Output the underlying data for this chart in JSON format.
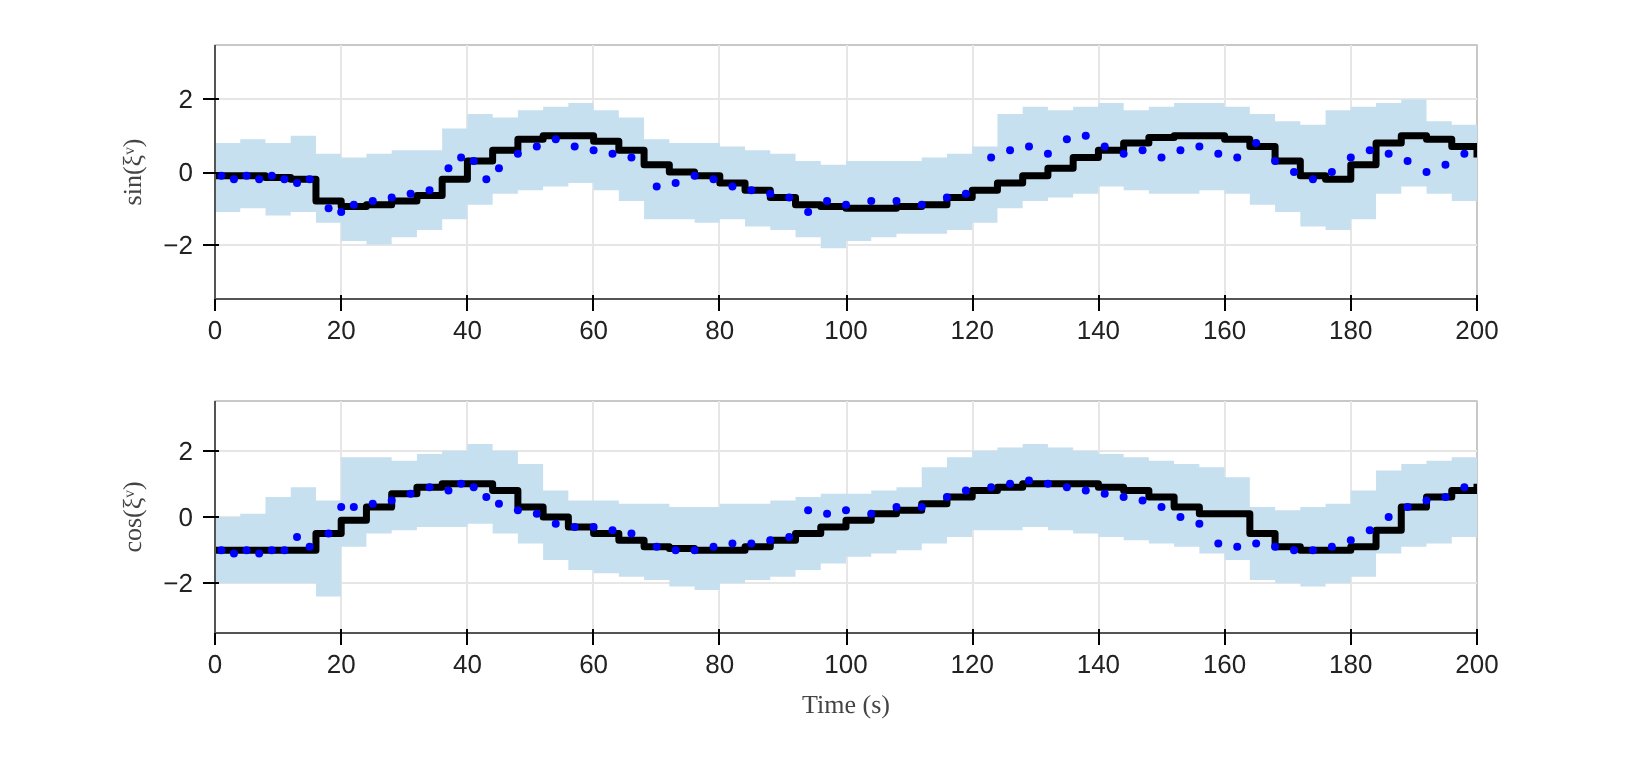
{
  "chart_data": [
    {
      "type": "step",
      "ylabel": "sin(ξᵛ)",
      "xlim": [
        0,
        200
      ],
      "ylim": [
        -3.5,
        3.5
      ],
      "xticks": [
        0,
        20,
        40,
        60,
        80,
        100,
        120,
        140,
        160,
        180,
        200
      ],
      "yticks": [
        -2,
        0,
        2
      ],
      "grid": true,
      "x": [
        0,
        4,
        8,
        12,
        16,
        20,
        24,
        28,
        32,
        36,
        40,
        44,
        48,
        52,
        56,
        60,
        64,
        68,
        72,
        76,
        80,
        84,
        88,
        92,
        96,
        100,
        104,
        108,
        112,
        116,
        120,
        124,
        128,
        132,
        136,
        140,
        144,
        148,
        152,
        156,
        160,
        164,
        168,
        172,
        176,
        180,
        184,
        188,
        192,
        196,
        200
      ],
      "series": [
        {
          "color": "#000000",
          "values": [
            -0.1,
            -0.1,
            -0.15,
            -0.2,
            -0.8,
            -0.95,
            -0.9,
            -0.8,
            -0.65,
            -0.2,
            0.3,
            0.6,
            0.9,
            1.0,
            1.0,
            0.85,
            0.6,
            0.2,
            0.0,
            -0.1,
            -0.3,
            -0.5,
            -0.7,
            -0.9,
            -0.95,
            -1.0,
            -1.0,
            -0.95,
            -0.9,
            -0.7,
            -0.5,
            -0.3,
            -0.1,
            0.1,
            0.4,
            0.6,
            0.8,
            0.95,
            1.0,
            1.0,
            0.9,
            0.7,
            0.3,
            -0.1,
            -0.2,
            0.2,
            0.8,
            1.0,
            0.9,
            0.7,
            0.4
          ],
          "upper": [
            0.8,
            0.9,
            0.8,
            1.0,
            0.5,
            0.4,
            0.5,
            0.6,
            0.6,
            1.2,
            1.6,
            1.5,
            1.7,
            1.8,
            1.9,
            1.7,
            1.5,
            0.9,
            0.8,
            0.8,
            0.7,
            0.6,
            0.5,
            0.3,
            0.2,
            0.3,
            0.3,
            0.3,
            0.4,
            0.5,
            0.7,
            1.6,
            1.8,
            1.7,
            1.8,
            1.9,
            1.7,
            1.8,
            1.9,
            1.9,
            1.8,
            1.6,
            1.4,
            1.3,
            1.7,
            1.8,
            1.9,
            2.0,
            1.4,
            1.3,
            1.6
          ],
          "lower": [
            -1.1,
            -1.0,
            -1.2,
            -1.1,
            -1.4,
            -1.9,
            -2.0,
            -1.8,
            -1.6,
            -1.3,
            -0.9,
            -0.6,
            -0.5,
            -0.4,
            -0.3,
            -0.5,
            -0.8,
            -1.3,
            -1.3,
            -1.4,
            -1.3,
            -1.5,
            -1.6,
            -1.8,
            -2.1,
            -1.9,
            -1.8,
            -1.7,
            -1.7,
            -1.6,
            -1.4,
            -1.0,
            -0.8,
            -0.7,
            -0.6,
            -0.4,
            -0.5,
            -0.6,
            -0.6,
            -0.5,
            -0.6,
            -0.9,
            -1.1,
            -1.5,
            -1.6,
            -1.3,
            -0.6,
            -0.4,
            -0.6,
            -0.8,
            -0.7
          ]
        },
        {
          "type": "scatter",
          "color": "#0000ff",
          "x": [
            1,
            3,
            5,
            7,
            9,
            11,
            13,
            15,
            18,
            20,
            22,
            25,
            28,
            31,
            34,
            37,
            39,
            41,
            43,
            45,
            48,
            51,
            54,
            57,
            60,
            63,
            66,
            70,
            73,
            76,
            79,
            82,
            85,
            88,
            91,
            94,
            97,
            100,
            104,
            108,
            112,
            116,
            119,
            123,
            126,
            129,
            132,
            135,
            138,
            141,
            144,
            147,
            150,
            153,
            156,
            159,
            162,
            165,
            168,
            171,
            174,
            177,
            180,
            183,
            186,
            189,
            192,
            195,
            198
          ],
          "values": [
            -0.1,
            -0.2,
            -0.1,
            -0.2,
            -0.1,
            -0.2,
            -0.3,
            -0.2,
            -1.0,
            -1.1,
            -0.9,
            -0.8,
            -0.7,
            -0.6,
            -0.5,
            0.1,
            0.4,
            0.3,
            -0.2,
            0.1,
            0.5,
            0.7,
            0.9,
            0.7,
            0.6,
            0.5,
            0.4,
            -0.4,
            -0.3,
            -0.1,
            -0.2,
            -0.4,
            -0.5,
            -0.6,
            -0.7,
            -1.1,
            -0.8,
            -0.9,
            -0.8,
            -0.8,
            -0.9,
            -0.7,
            -0.6,
            0.4,
            0.6,
            0.7,
            0.5,
            0.9,
            1.0,
            0.7,
            0.5,
            0.6,
            0.4,
            0.6,
            0.7,
            0.5,
            0.4,
            0.8,
            0.3,
            0.0,
            -0.2,
            0.0,
            0.4,
            0.6,
            0.5,
            0.3,
            0.0,
            0.2,
            0.5
          ]
        }
      ]
    },
    {
      "type": "step",
      "ylabel": "cos(ξᵛ)",
      "xlabel": "Time (s)",
      "xlim": [
        0,
        200
      ],
      "ylim": [
        -3.5,
        3.5
      ],
      "xticks": [
        0,
        20,
        40,
        60,
        80,
        100,
        120,
        140,
        160,
        180,
        200
      ],
      "yticks": [
        -2,
        0,
        2
      ],
      "grid": true,
      "x": [
        0,
        4,
        8,
        12,
        16,
        20,
        24,
        28,
        32,
        36,
        40,
        44,
        48,
        52,
        56,
        60,
        64,
        68,
        72,
        76,
        80,
        84,
        88,
        92,
        96,
        100,
        104,
        108,
        112,
        116,
        120,
        124,
        128,
        132,
        136,
        140,
        144,
        148,
        152,
        156,
        160,
        164,
        168,
        172,
        176,
        180,
        184,
        188,
        192,
        196,
        200
      ],
      "series": [
        {
          "color": "#000000",
          "values": [
            -1.0,
            -1.0,
            -1.0,
            -1.0,
            -0.5,
            -0.1,
            0.3,
            0.7,
            0.9,
            1.0,
            1.0,
            0.8,
            0.3,
            0.0,
            -0.3,
            -0.5,
            -0.7,
            -0.9,
            -0.95,
            -1.0,
            -1.0,
            -0.9,
            -0.7,
            -0.5,
            -0.3,
            -0.1,
            0.1,
            0.2,
            0.4,
            0.6,
            0.8,
            0.9,
            1.0,
            1.0,
            1.0,
            0.9,
            0.8,
            0.6,
            0.3,
            0.1,
            0.1,
            -0.5,
            -0.9,
            -1.0,
            -1.0,
            -0.9,
            -0.4,
            0.3,
            0.6,
            0.8,
            1.0
          ],
          "upper": [
            0.0,
            0.1,
            0.6,
            0.9,
            0.5,
            1.8,
            1.8,
            1.7,
            1.9,
            2.0,
            2.2,
            2.0,
            1.6,
            0.8,
            0.5,
            0.5,
            0.4,
            0.4,
            0.3,
            0.3,
            0.4,
            0.4,
            0.5,
            0.6,
            0.7,
            0.7,
            0.8,
            0.9,
            1.5,
            1.8,
            2.0,
            2.1,
            2.2,
            2.1,
            2.0,
            1.9,
            1.8,
            1.7,
            1.6,
            1.5,
            1.2,
            0.3,
            0.2,
            0.3,
            0.4,
            0.8,
            1.4,
            1.6,
            1.7,
            1.8,
            2.1
          ],
          "lower": [
            -2.0,
            -2.0,
            -2.0,
            -2.0,
            -2.4,
            -0.9,
            -0.5,
            -0.4,
            -0.3,
            -0.3,
            -0.2,
            -0.5,
            -0.8,
            -1.3,
            -1.6,
            -1.7,
            -1.8,
            -1.9,
            -2.1,
            -2.2,
            -2.0,
            -1.9,
            -1.8,
            -1.6,
            -1.4,
            -1.2,
            -1.1,
            -1.0,
            -0.8,
            -0.6,
            -0.4,
            -0.4,
            -0.3,
            -0.4,
            -0.5,
            -0.6,
            -0.7,
            -0.8,
            -0.9,
            -1.1,
            -1.3,
            -1.9,
            -2.0,
            -2.1,
            -2.0,
            -1.8,
            -1.1,
            -0.9,
            -0.8,
            -0.6,
            -0.5
          ]
        },
        {
          "type": "scatter",
          "color": "#0000ff",
          "x": [
            1,
            3,
            5,
            7,
            9,
            11,
            13,
            15,
            18,
            20,
            22,
            25,
            28,
            31,
            34,
            37,
            39,
            41,
            43,
            45,
            48,
            51,
            54,
            57,
            60,
            63,
            66,
            70,
            73,
            76,
            79,
            82,
            85,
            88,
            91,
            94,
            97,
            100,
            104,
            108,
            112,
            116,
            119,
            123,
            126,
            129,
            132,
            135,
            138,
            141,
            144,
            147,
            150,
            153,
            156,
            159,
            162,
            165,
            168,
            171,
            174,
            177,
            180,
            183,
            186,
            189,
            192,
            195,
            198
          ],
          "values": [
            -1.0,
            -1.1,
            -1.0,
            -1.1,
            -1.0,
            -1.0,
            -0.6,
            -0.9,
            -0.5,
            0.3,
            0.3,
            0.4,
            0.5,
            0.7,
            0.9,
            0.8,
            1.0,
            0.9,
            0.6,
            0.4,
            0.2,
            0.1,
            -0.2,
            -0.3,
            -0.3,
            -0.4,
            -0.5,
            -0.9,
            -1.0,
            -1.0,
            -0.9,
            -0.8,
            -0.8,
            -0.7,
            -0.6,
            0.2,
            0.1,
            0.2,
            0.1,
            0.3,
            0.3,
            0.6,
            0.8,
            0.9,
            1.0,
            1.1,
            1.0,
            0.9,
            0.8,
            0.7,
            0.6,
            0.5,
            0.3,
            0.0,
            -0.2,
            -0.8,
            -0.9,
            -0.8,
            -0.9,
            -1.0,
            -1.0,
            -0.9,
            -0.7,
            -0.4,
            0.0,
            0.3,
            0.5,
            0.6,
            0.9
          ]
        }
      ]
    }
  ]
}
